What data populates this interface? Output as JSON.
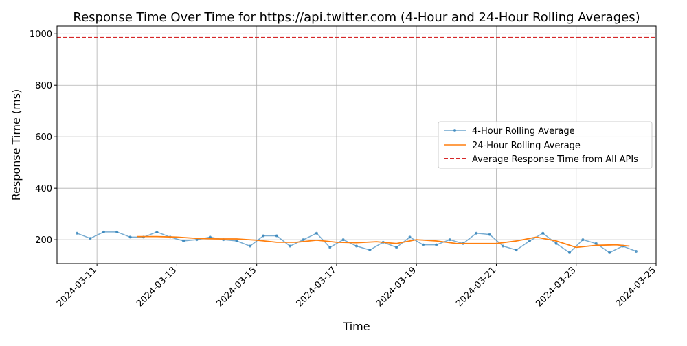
{
  "chart_data": {
    "type": "line",
    "title": "Response Time Over Time for https://api.twitter.com (4-Hour and 24-Hour Rolling Averages)",
    "xlabel": "Time",
    "ylabel": "Response Time (ms)",
    "x_range": [
      "2024-03-10T00:00",
      "2024-03-25T00:00"
    ],
    "ylim": [
      107,
      1030
    ],
    "x_ticks": [
      "2024-03-11",
      "2024-03-13",
      "2024-03-15",
      "2024-03-17",
      "2024-03-19",
      "2024-03-21",
      "2024-03-23",
      "2024-03-25"
    ],
    "y_ticks": [
      200,
      400,
      600,
      800,
      1000
    ],
    "grid": true,
    "legend_position": "center-right",
    "series": [
      {
        "name": "4-Hour Rolling Average",
        "style": "line-with-markers",
        "color": "#1f77b4",
        "x": [
          "2024-03-10T12:00",
          "2024-03-10T20:00",
          "2024-03-11T04:00",
          "2024-03-11T12:00",
          "2024-03-11T20:00",
          "2024-03-12T04:00",
          "2024-03-12T12:00",
          "2024-03-12T20:00",
          "2024-03-13T04:00",
          "2024-03-13T12:00",
          "2024-03-13T20:00",
          "2024-03-14T04:00",
          "2024-03-14T12:00",
          "2024-03-14T20:00",
          "2024-03-15T04:00",
          "2024-03-15T12:00",
          "2024-03-15T20:00",
          "2024-03-16T04:00",
          "2024-03-16T12:00",
          "2024-03-16T20:00",
          "2024-03-17T04:00",
          "2024-03-17T12:00",
          "2024-03-17T20:00",
          "2024-03-18T04:00",
          "2024-03-18T12:00",
          "2024-03-18T20:00",
          "2024-03-19T04:00",
          "2024-03-19T12:00",
          "2024-03-19T20:00",
          "2024-03-20T04:00",
          "2024-03-20T12:00",
          "2024-03-20T20:00",
          "2024-03-21T04:00",
          "2024-03-21T12:00",
          "2024-03-21T20:00",
          "2024-03-22T04:00",
          "2024-03-22T12:00",
          "2024-03-22T20:00",
          "2024-03-23T04:00",
          "2024-03-23T12:00",
          "2024-03-23T20:00",
          "2024-03-24T04:00",
          "2024-03-24T12:00"
        ],
        "values": [
          225,
          205,
          230,
          230,
          210,
          210,
          230,
          210,
          195,
          200,
          210,
          200,
          195,
          175,
          215,
          215,
          175,
          200,
          225,
          170,
          200,
          175,
          160,
          190,
          170,
          210,
          180,
          180,
          200,
          185,
          225,
          220,
          175,
          160,
          195,
          225,
          185,
          150,
          200,
          185,
          150,
          175,
          155
        ]
      },
      {
        "name": "24-Hour Rolling Average",
        "style": "line",
        "color": "#ff7f0e",
        "x": [
          "2024-03-12T00:00",
          "2024-03-12T12:00",
          "2024-03-13T00:00",
          "2024-03-13T12:00",
          "2024-03-14T00:00",
          "2024-03-14T12:00",
          "2024-03-15T00:00",
          "2024-03-15T12:00",
          "2024-03-16T00:00",
          "2024-03-16T12:00",
          "2024-03-17T00:00",
          "2024-03-17T12:00",
          "2024-03-18T00:00",
          "2024-03-18T12:00",
          "2024-03-19T00:00",
          "2024-03-19T12:00",
          "2024-03-20T00:00",
          "2024-03-20T12:00",
          "2024-03-21T00:00",
          "2024-03-21T12:00",
          "2024-03-22T00:00",
          "2024-03-22T12:00",
          "2024-03-23T00:00",
          "2024-03-23T12:00",
          "2024-03-24T00:00",
          "2024-03-24T08:00"
        ],
        "values": [
          212,
          212,
          210,
          205,
          203,
          203,
          198,
          190,
          190,
          198,
          190,
          188,
          192,
          185,
          200,
          195,
          185,
          185,
          185,
          195,
          210,
          195,
          170,
          178,
          180,
          175
        ]
      },
      {
        "name": "Average Response Time from All APIs",
        "style": "dashed-hline",
        "color": "#d62728",
        "value": 985
      }
    ]
  }
}
